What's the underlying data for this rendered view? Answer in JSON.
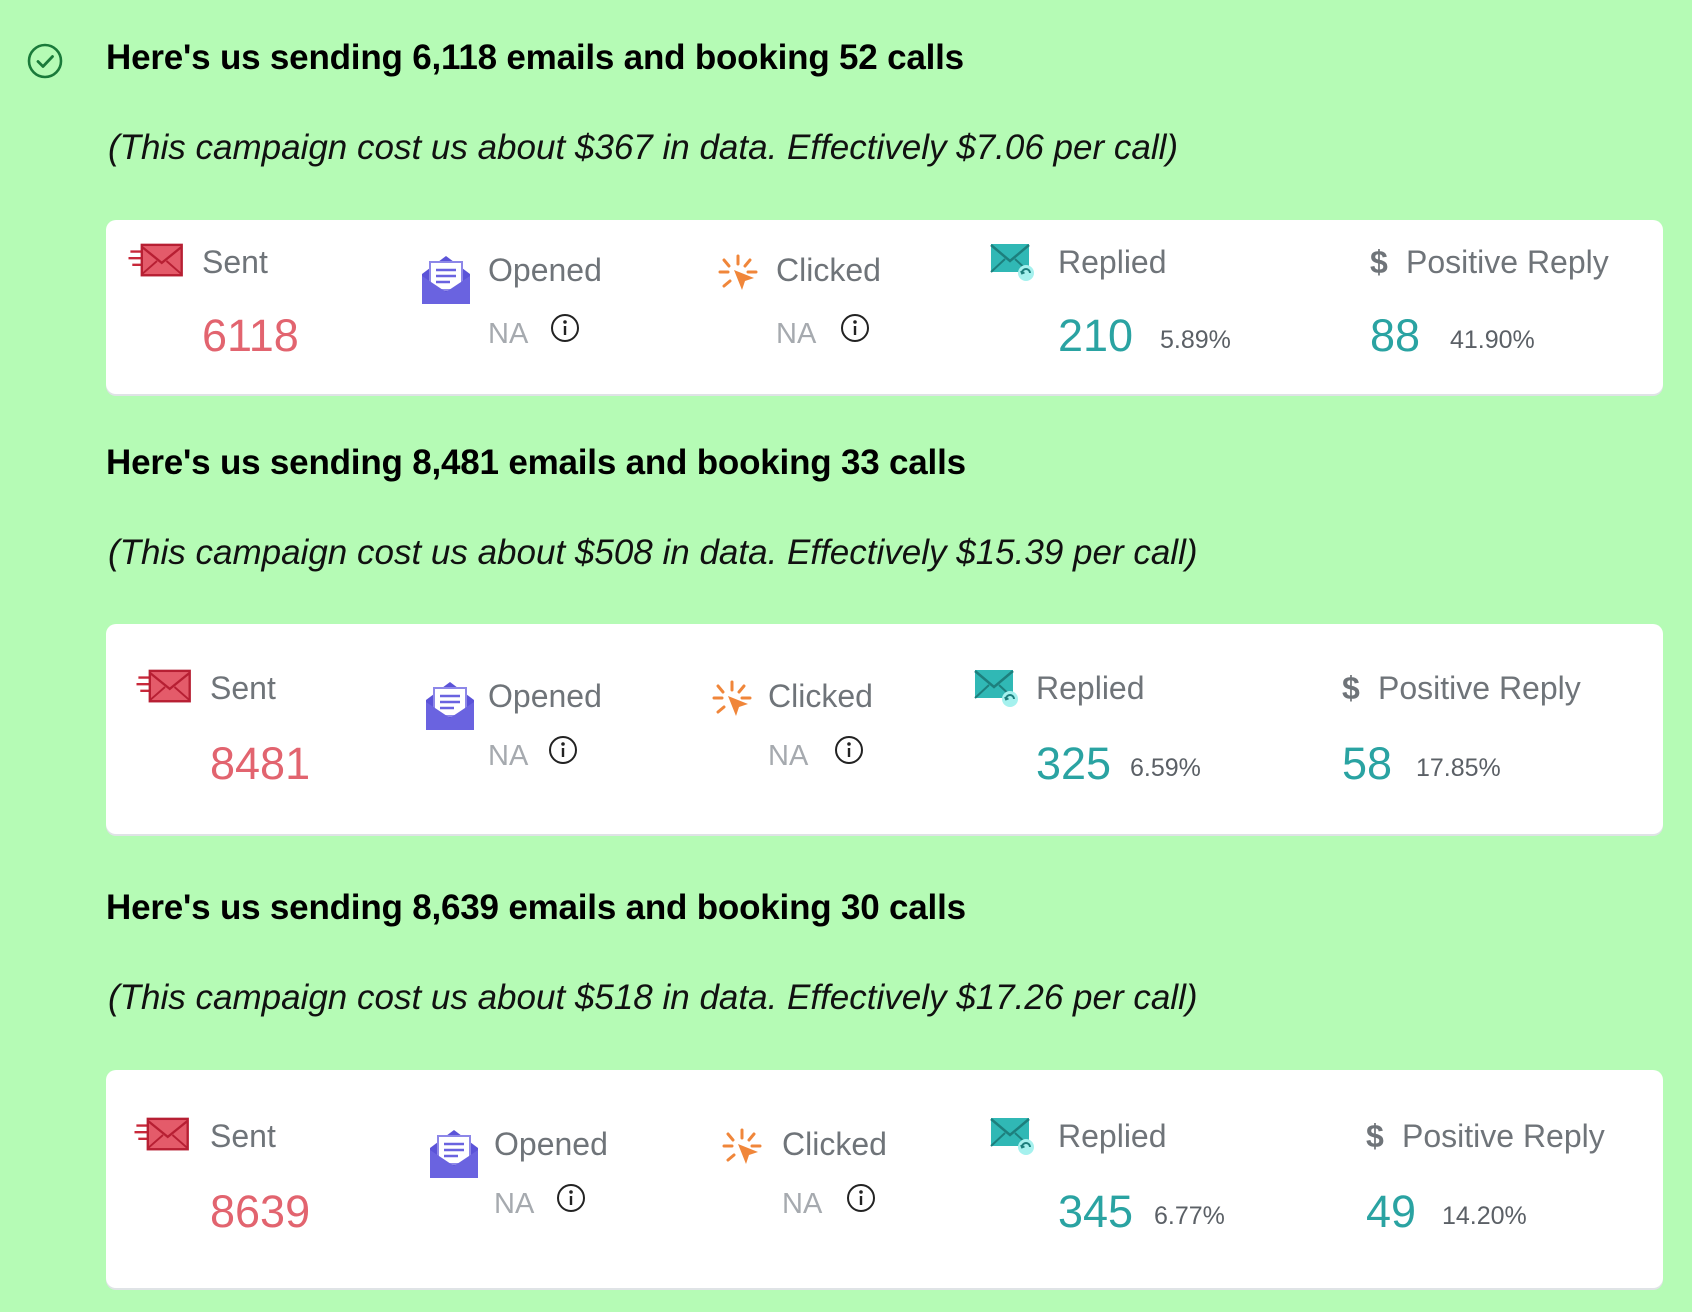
{
  "colors": {
    "background": "#b5fbb5",
    "sent": "#e2646f",
    "teal": "#2aa3a2",
    "opened": "#6a63e0",
    "clicked": "#f0863a"
  },
  "icons": {
    "check": "check-circle-icon",
    "sent": "envelope-send-icon",
    "opened": "open-envelope-icon",
    "clicked": "click-burst-icon",
    "replied": "reply-envelope-icon",
    "positive": "dollar-icon",
    "info": "info-icon"
  },
  "campaigns": [
    {
      "title": "Here's us sending 6,118 emails and booking 52 calls",
      "subtitle": "(This campaign cost us about $367 in data. Effectively $7.06 per call)",
      "labels": {
        "sent": "Sent",
        "opened": "Opened",
        "clicked": "Clicked",
        "replied": "Replied",
        "positive": "Positive Reply"
      },
      "sent": "6118",
      "opened": "NA",
      "clicked": "NA",
      "replied": "210",
      "replied_pct": "5.89%",
      "positive": "88",
      "positive_pct": "41.90%"
    },
    {
      "title": "Here's us sending 8,481 emails and booking 33 calls",
      "subtitle": "(This campaign cost us about $508 in data. Effectively $15.39 per call)",
      "labels": {
        "sent": "Sent",
        "opened": "Opened",
        "clicked": "Clicked",
        "replied": "Replied",
        "positive": "Positive Reply"
      },
      "sent": "8481",
      "opened": "NA",
      "clicked": "NA",
      "replied": "325",
      "replied_pct": "6.59%",
      "positive": "58",
      "positive_pct": "17.85%"
    },
    {
      "title": "Here's us sending 8,639 emails and booking 30 calls",
      "subtitle": "(This campaign cost us about $518 in data. Effectively $17.26 per call)",
      "labels": {
        "sent": "Sent",
        "opened": "Opened",
        "clicked": "Clicked",
        "replied": "Replied",
        "positive": "Positive Reply"
      },
      "sent": "8639",
      "opened": "NA",
      "clicked": "NA",
      "replied": "345",
      "replied_pct": "6.77%",
      "positive": "49",
      "positive_pct": "14.20%"
    }
  ]
}
